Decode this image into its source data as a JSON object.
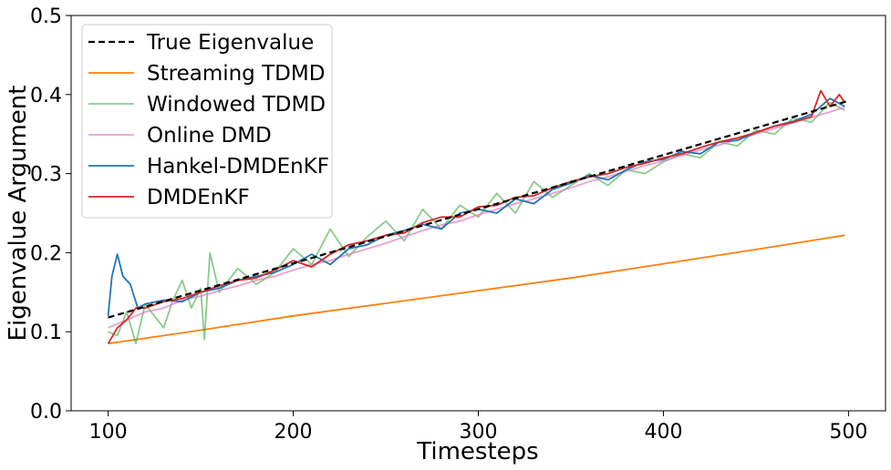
{
  "chart_data": {
    "type": "line",
    "xlabel": "Timesteps",
    "ylabel": "Eigenvalue Argument",
    "xlim": [
      80,
      520
    ],
    "ylim": [
      0.0,
      0.5
    ],
    "xticks": [
      100,
      200,
      300,
      400,
      500
    ],
    "xtick_labels": [
      "100",
      "200",
      "300",
      "400",
      "500"
    ],
    "yticks": [
      0.0,
      0.1,
      0.2,
      0.3,
      0.4,
      0.5
    ],
    "ytick_labels": [
      "0.0",
      "0.1",
      "0.2",
      "0.3",
      "0.4",
      "0.5"
    ],
    "legend_position": "top-left",
    "series": [
      {
        "name": "True Eigenvalue",
        "color": "#000000",
        "style": "dashed",
        "x": [
          100,
          500
        ],
        "y": [
          0.118,
          0.392
        ]
      },
      {
        "name": "Streaming TDMD",
        "color": "#ff7f0e",
        "style": "solid",
        "x": [
          100,
          150,
          200,
          250,
          300,
          350,
          400,
          450,
          498
        ],
        "y": [
          0.085,
          0.102,
          0.12,
          0.136,
          0.152,
          0.168,
          0.186,
          0.204,
          0.222
        ]
      },
      {
        "name": "Windowed TDMD",
        "color": "#2ca02c",
        "style": "solid",
        "alpha": 0.55,
        "x": [
          100,
          105,
          110,
          115,
          120,
          125,
          130,
          135,
          140,
          145,
          150,
          152,
          155,
          160,
          170,
          180,
          190,
          200,
          210,
          220,
          230,
          240,
          250,
          260,
          270,
          280,
          290,
          300,
          310,
          320,
          330,
          340,
          350,
          360,
          370,
          380,
          390,
          400,
          410,
          420,
          430,
          440,
          450,
          460,
          470,
          480,
          490,
          498
        ],
        "y": [
          0.1,
          0.095,
          0.125,
          0.085,
          0.135,
          0.12,
          0.105,
          0.14,
          0.165,
          0.13,
          0.155,
          0.09,
          0.2,
          0.15,
          0.18,
          0.16,
          0.175,
          0.205,
          0.185,
          0.23,
          0.195,
          0.22,
          0.24,
          0.215,
          0.255,
          0.23,
          0.26,
          0.245,
          0.275,
          0.25,
          0.29,
          0.27,
          0.285,
          0.3,
          0.285,
          0.305,
          0.3,
          0.315,
          0.325,
          0.32,
          0.34,
          0.335,
          0.355,
          0.35,
          0.37,
          0.365,
          0.39,
          0.38
        ]
      },
      {
        "name": "Online DMD",
        "color": "#e377c2",
        "style": "solid",
        "alpha": 0.7,
        "x": [
          100,
          110,
          120,
          130,
          140,
          150,
          160,
          170,
          180,
          190,
          200,
          210,
          220,
          230,
          240,
          250,
          260,
          270,
          280,
          290,
          300,
          310,
          320,
          330,
          340,
          350,
          360,
          370,
          380,
          390,
          400,
          410,
          420,
          430,
          440,
          450,
          460,
          470,
          480,
          490,
          498
        ],
        "y": [
          0.105,
          0.115,
          0.125,
          0.13,
          0.14,
          0.145,
          0.152,
          0.158,
          0.165,
          0.17,
          0.178,
          0.185,
          0.19,
          0.198,
          0.205,
          0.212,
          0.22,
          0.228,
          0.235,
          0.24,
          0.248,
          0.255,
          0.262,
          0.268,
          0.275,
          0.282,
          0.29,
          0.296,
          0.303,
          0.31,
          0.316,
          0.323,
          0.33,
          0.336,
          0.343,
          0.35,
          0.357,
          0.364,
          0.371,
          0.378,
          0.384
        ]
      },
      {
        "name": "Hankel-DMDEnKF",
        "color": "#1f77b4",
        "style": "solid",
        "x": [
          100,
          102,
          105,
          108,
          112,
          116,
          120,
          130,
          140,
          150,
          160,
          170,
          180,
          190,
          200,
          210,
          220,
          230,
          240,
          250,
          260,
          270,
          280,
          290,
          300,
          310,
          320,
          330,
          340,
          350,
          360,
          370,
          380,
          390,
          400,
          410,
          420,
          430,
          440,
          450,
          460,
          470,
          480,
          490,
          498
        ],
        "y": [
          0.12,
          0.17,
          0.198,
          0.17,
          0.16,
          0.13,
          0.135,
          0.14,
          0.138,
          0.15,
          0.155,
          0.165,
          0.17,
          0.175,
          0.185,
          0.198,
          0.185,
          0.205,
          0.21,
          0.222,
          0.228,
          0.236,
          0.23,
          0.25,
          0.255,
          0.25,
          0.268,
          0.262,
          0.28,
          0.288,
          0.298,
          0.292,
          0.305,
          0.315,
          0.318,
          0.328,
          0.325,
          0.34,
          0.342,
          0.352,
          0.36,
          0.366,
          0.375,
          0.395,
          0.385
        ]
      },
      {
        "name": "DMDEnKF",
        "color": "#d62728",
        "style": "solid",
        "x": [
          100,
          105,
          110,
          115,
          120,
          130,
          140,
          150,
          160,
          170,
          180,
          190,
          200,
          210,
          220,
          230,
          240,
          250,
          260,
          270,
          280,
          290,
          300,
          310,
          320,
          330,
          340,
          350,
          360,
          370,
          380,
          390,
          400,
          410,
          420,
          430,
          440,
          450,
          460,
          470,
          480,
          485,
          490,
          495,
          498
        ],
        "y": [
          0.085,
          0.105,
          0.115,
          0.13,
          0.13,
          0.138,
          0.142,
          0.15,
          0.158,
          0.165,
          0.168,
          0.178,
          0.19,
          0.182,
          0.198,
          0.21,
          0.215,
          0.222,
          0.225,
          0.238,
          0.245,
          0.245,
          0.258,
          0.26,
          0.27,
          0.272,
          0.282,
          0.29,
          0.296,
          0.3,
          0.308,
          0.313,
          0.32,
          0.325,
          0.333,
          0.34,
          0.345,
          0.352,
          0.36,
          0.365,
          0.372,
          0.405,
          0.385,
          0.4,
          0.39
        ]
      }
    ]
  }
}
